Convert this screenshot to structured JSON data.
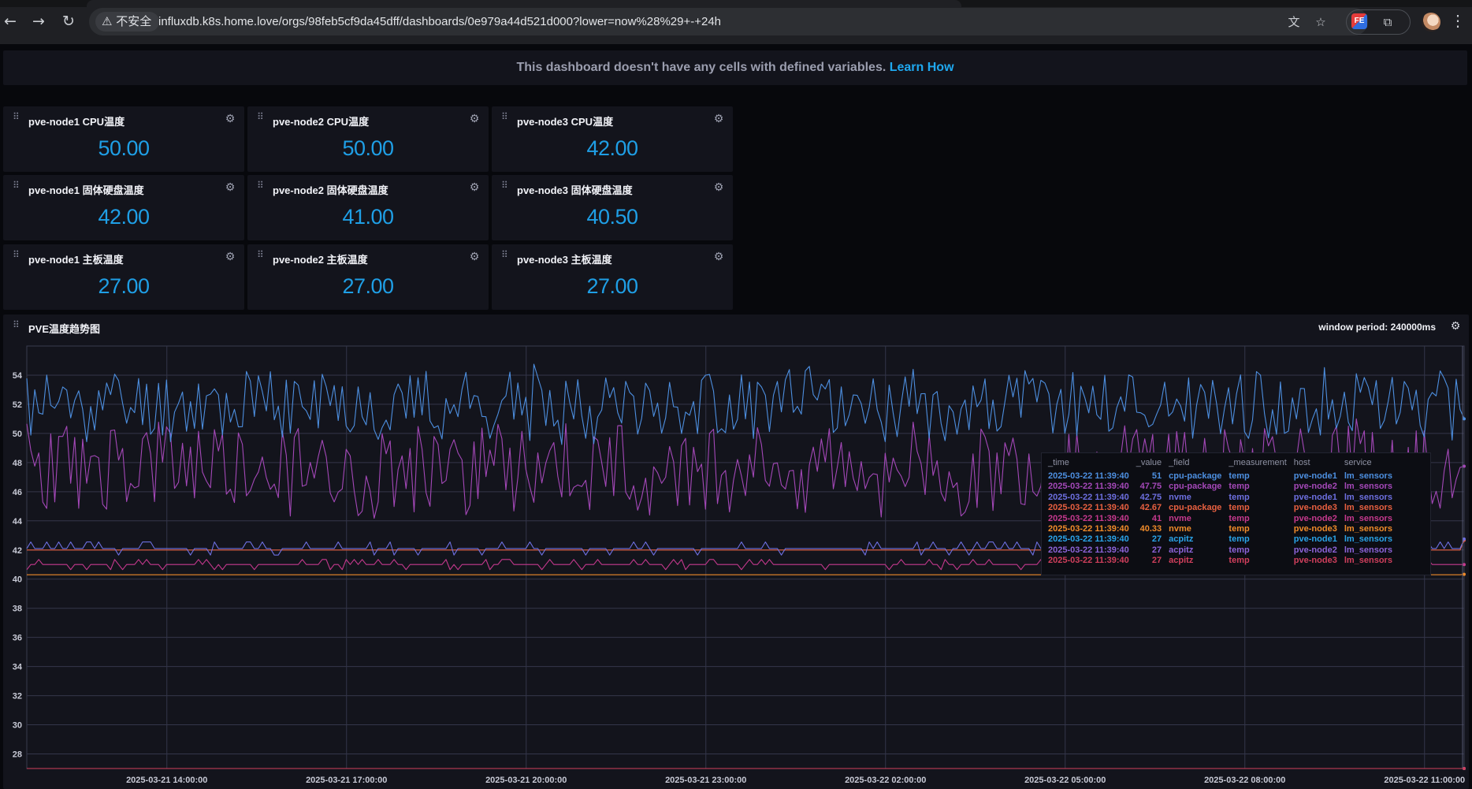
{
  "browser": {
    "security_label": "不安全",
    "url": "influxdb.k8s.home.love/orgs/98feb5cf9da45dff/dashboards/0e979a44d521d000?lower=now%28%29+-+24h",
    "extension_label": "FE"
  },
  "notice": {
    "text": "This dashboard doesn't have any cells with defined variables.",
    "link": "Learn How"
  },
  "cells": [
    {
      "title": "pve-node1 CPU温度",
      "value": "50.00"
    },
    {
      "title": "pve-node2 CPU温度",
      "value": "50.00"
    },
    {
      "title": "pve-node3 CPU温度",
      "value": "42.00"
    },
    {
      "title": "pve-node1 固体硬盘温度",
      "value": "42.00"
    },
    {
      "title": "pve-node2 固体硬盘温度",
      "value": "41.00"
    },
    {
      "title": "pve-node3 固体硬盘温度",
      "value": "40.50"
    },
    {
      "title": "pve-node1 主板温度",
      "value": "27.00"
    },
    {
      "title": "pve-node2 主板温度",
      "value": "27.00"
    },
    {
      "title": "pve-node3 主板温度",
      "value": "27.00"
    }
  ],
  "graph": {
    "title": "PVE温度趋势图",
    "window_period": "window period: 240000ms"
  },
  "tooltip": {
    "headers": [
      "_time",
      "_value",
      "_field",
      "_measurement",
      "host",
      "service"
    ],
    "rows": [
      {
        "time": "2025-03-22 11:39:40",
        "value": "51",
        "field": "cpu-package",
        "measurement": "temp",
        "host": "pve-node1",
        "service": "lm_sensors",
        "color": "#4d8fe0"
      },
      {
        "time": "2025-03-22 11:39:40",
        "value": "47.75",
        "field": "cpu-package",
        "measurement": "temp",
        "host": "pve-node2",
        "service": "lm_sensors",
        "color": "#a448b8"
      },
      {
        "time": "2025-03-22 11:39:40",
        "value": "42.75",
        "field": "nvme",
        "measurement": "temp",
        "host": "pve-node1",
        "service": "lm_sensors",
        "color": "#6d6fe0"
      },
      {
        "time": "2025-03-22 11:39:40",
        "value": "42.67",
        "field": "cpu-package",
        "measurement": "temp",
        "host": "pve-node3",
        "service": "lm_sensors",
        "color": "#e86040"
      },
      {
        "time": "2025-03-22 11:39:40",
        "value": "41",
        "field": "nvme",
        "measurement": "temp",
        "host": "pve-node2",
        "service": "lm_sensors",
        "color": "#c6398e"
      },
      {
        "time": "2025-03-22 11:39:40",
        "value": "40.33",
        "field": "nvme",
        "measurement": "temp",
        "host": "pve-node3",
        "service": "lm_sensors",
        "color": "#f08b2a"
      },
      {
        "time": "2025-03-22 11:39:40",
        "value": "27",
        "field": "acpitz",
        "measurement": "temp",
        "host": "pve-node1",
        "service": "lm_sensors",
        "color": "#2aa3e8"
      },
      {
        "time": "2025-03-22 11:39:40",
        "value": "27",
        "field": "acpitz",
        "measurement": "temp",
        "host": "pve-node2",
        "service": "lm_sensors",
        "color": "#8c63d8"
      },
      {
        "time": "2025-03-22 11:39:40",
        "value": "27",
        "field": "acpitz",
        "measurement": "temp",
        "host": "pve-node3",
        "service": "lm_sensors",
        "color": "#d03f5c"
      }
    ]
  },
  "chart_data": {
    "type": "line",
    "title": "PVE温度趋势图",
    "x_start": "2025-03-21 11:39:40",
    "x_end": "2025-03-22 11:39:40",
    "xlim": [
      "2025-03-21 11:39:40",
      "2025-03-22 11:39:40"
    ],
    "x_ticks": [
      "2025-03-21 14:00:00",
      "2025-03-21 17:00:00",
      "2025-03-21 20:00:00",
      "2025-03-21 23:00:00",
      "2025-03-22 02:00:00",
      "2025-03-22 05:00:00",
      "2025-03-22 08:00:00",
      "2025-03-22 11:00:00"
    ],
    "y_ticks": [
      28,
      30,
      32,
      34,
      36,
      38,
      40,
      42,
      44,
      46,
      48,
      50,
      52,
      54
    ],
    "ylim": [
      27,
      56
    ],
    "grid": true,
    "interval_minutes": 4,
    "series": [
      {
        "name": "cpu-package pve-node1",
        "color": "#4d8fe0",
        "base": 52,
        "amp": 2.4,
        "seed": 11,
        "last": 51
      },
      {
        "name": "cpu-package pve-node2",
        "color": "#a448b8",
        "base": 47.6,
        "amp": 3.2,
        "seed": 23,
        "last": 47.75
      },
      {
        "name": "nvme pve-node1",
        "color": "#6d6fe0",
        "base": 42.1,
        "amp": 0.45,
        "seed": 37,
        "last": 42.75
      },
      {
        "name": "cpu-package pve-node3",
        "color": "#e86040",
        "base": 42,
        "amp": 0.0,
        "seed": 41,
        "last": 42.67
      },
      {
        "name": "nvme pve-node2",
        "color": "#c6398e",
        "base": 41,
        "amp": 0.35,
        "seed": 53,
        "last": 41
      },
      {
        "name": "nvme pve-node3",
        "color": "#f08b2a",
        "base": 40.3,
        "amp": 0.0,
        "seed": 61,
        "last": 40.33
      },
      {
        "name": "acpitz pve-node1",
        "color": "#2aa3e8",
        "base": 27,
        "amp": 0,
        "seed": 71,
        "last": 27
      },
      {
        "name": "acpitz pve-node2",
        "color": "#8c63d8",
        "base": 27,
        "amp": 0,
        "seed": 79,
        "last": 27
      },
      {
        "name": "acpitz pve-node3",
        "color": "#d03f5c",
        "base": 27,
        "amp": 0,
        "seed": 83,
        "last": 27
      }
    ]
  }
}
